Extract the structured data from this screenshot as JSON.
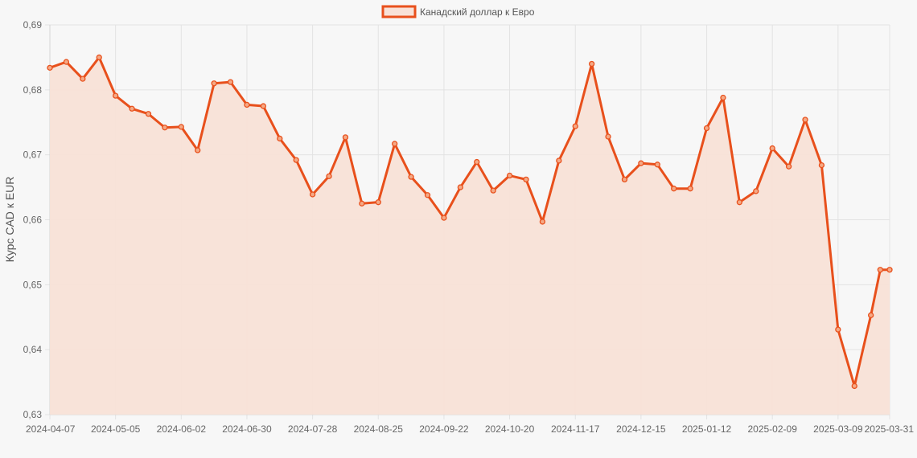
{
  "colors": {
    "line": "#e8501c",
    "fill": "#f8e1d7",
    "point_fill": "#f5a985",
    "background": "#f7f7f7",
    "grid": "#e3e3e3"
  },
  "chart_data": {
    "type": "area",
    "legend": {
      "position": "top",
      "label": "Канадский доллар к Евро"
    },
    "ylabel": "Курс CAD к EUR",
    "xlabel": "",
    "ylim": [
      0.63,
      0.69
    ],
    "y_ticks": [
      "0,69",
      "0,68",
      "0,67",
      "0,66",
      "0,65",
      "0,64",
      "0,63"
    ],
    "x_ticks": [
      "2024-04-07",
      "2024-05-05",
      "2024-06-02",
      "2024-06-30",
      "2024-07-28",
      "2024-08-25",
      "2024-09-22",
      "2024-10-20",
      "2024-11-17",
      "2024-12-15",
      "2025-01-12",
      "2025-02-09",
      "2025-03-09",
      "2025-03-31"
    ],
    "grid": true,
    "series": [
      {
        "name": "Канадский доллар к Евро",
        "points": [
          [
            "2024-04-07",
            0.6834
          ],
          [
            "2024-04-14",
            0.6843
          ],
          [
            "2024-04-21",
            0.6817
          ],
          [
            "2024-04-28",
            0.685
          ],
          [
            "2024-05-05",
            0.6791
          ],
          [
            "2024-05-12",
            0.6771
          ],
          [
            "2024-05-19",
            0.6763
          ],
          [
            "2024-05-26",
            0.6742
          ],
          [
            "2024-06-02",
            0.6743
          ],
          [
            "2024-06-09",
            0.6707
          ],
          [
            "2024-06-16",
            0.681
          ],
          [
            "2024-06-23",
            0.6812
          ],
          [
            "2024-06-30",
            0.6777
          ],
          [
            "2024-07-07",
            0.6775
          ],
          [
            "2024-07-14",
            0.6725
          ],
          [
            "2024-07-21",
            0.6692
          ],
          [
            "2024-07-28",
            0.6639
          ],
          [
            "2024-08-04",
            0.6667
          ],
          [
            "2024-08-11",
            0.6727
          ],
          [
            "2024-08-18",
            0.6625
          ],
          [
            "2024-08-25",
            0.6627
          ],
          [
            "2024-09-01",
            0.6717
          ],
          [
            "2024-09-08",
            0.6666
          ],
          [
            "2024-09-15",
            0.6638
          ],
          [
            "2024-09-22",
            0.6603
          ],
          [
            "2024-09-29",
            0.665
          ],
          [
            "2024-10-06",
            0.6689
          ],
          [
            "2024-10-13",
            0.6645
          ],
          [
            "2024-10-20",
            0.6668
          ],
          [
            "2024-10-27",
            0.6662
          ],
          [
            "2024-11-03",
            0.6597
          ],
          [
            "2024-11-10",
            0.6691
          ],
          [
            "2024-11-17",
            0.6744
          ],
          [
            "2024-11-24",
            0.684
          ],
          [
            "2024-12-01",
            0.6728
          ],
          [
            "2024-12-08",
            0.6662
          ],
          [
            "2024-12-15",
            0.6687
          ],
          [
            "2024-12-22",
            0.6685
          ],
          [
            "2024-12-29",
            0.6648
          ],
          [
            "2025-01-05",
            0.6648
          ],
          [
            "2025-01-12",
            0.6741
          ],
          [
            "2025-01-19",
            0.6788
          ],
          [
            "2025-01-26",
            0.6627
          ],
          [
            "2025-02-02",
            0.6644
          ],
          [
            "2025-02-09",
            0.671
          ],
          [
            "2025-02-16",
            0.6682
          ],
          [
            "2025-02-23",
            0.6754
          ],
          [
            "2025-03-02",
            0.6684
          ],
          [
            "2025-03-09",
            0.6431
          ],
          [
            "2025-03-16",
            0.6344
          ],
          [
            "2025-03-23",
            0.6453
          ],
          [
            "2025-03-27",
            0.6523
          ],
          [
            "2025-03-31",
            0.6523
          ]
        ]
      }
    ]
  }
}
